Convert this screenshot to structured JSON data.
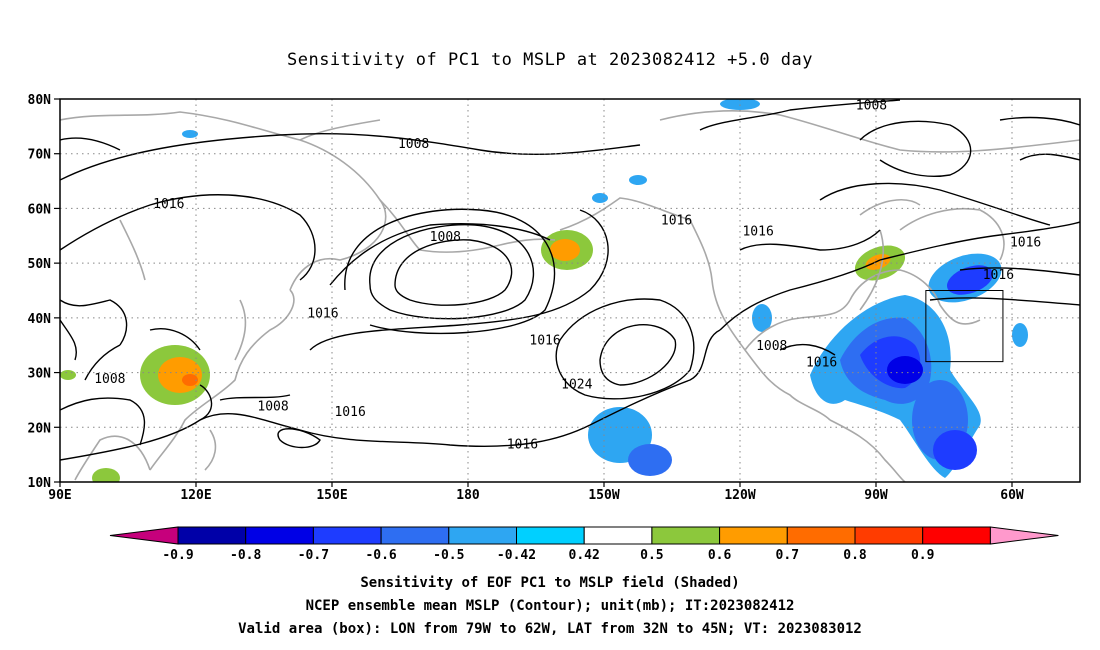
{
  "title": "Sensitivity of PC1 to MSLP at 2023082412 +5.0 day",
  "map": {
    "lat_labels": [
      "80N",
      "70N",
      "60N",
      "50N",
      "40N",
      "30N",
      "20N",
      "10N"
    ],
    "lat_values": [
      80,
      70,
      60,
      50,
      40,
      30,
      20,
      10
    ],
    "lon_labels": [
      "90E",
      "120E",
      "150E",
      "180",
      "150W",
      "120W",
      "90W",
      "60W"
    ],
    "lon_values": [
      90,
      120,
      150,
      180,
      210,
      240,
      270,
      300
    ],
    "lon_range": [
      90,
      315
    ],
    "lat_range": [
      10,
      80
    ],
    "grid": "dotted",
    "contour_labels": [
      {
        "text": "1008",
        "lon": 168,
        "lat": 72
      },
      {
        "text": "1008",
        "lon": 269,
        "lat": 79
      },
      {
        "text": "1016",
        "lon": 114,
        "lat": 61
      },
      {
        "text": "1008",
        "lon": 175,
        "lat": 55
      },
      {
        "text": "1016",
        "lon": 244,
        "lat": 56
      },
      {
        "text": "1016",
        "lon": 303,
        "lat": 54
      },
      {
        "text": "1016",
        "lon": 297,
        "lat": 48
      },
      {
        "text": "1016",
        "lon": 148,
        "lat": 41
      },
      {
        "text": "1016",
        "lon": 226,
        "lat": 58
      },
      {
        "text": "1016",
        "lon": 197,
        "lat": 36
      },
      {
        "text": "1024",
        "lon": 204,
        "lat": 28
      },
      {
        "text": "1008",
        "lon": 101,
        "lat": 29
      },
      {
        "text": "1008",
        "lon": 137,
        "lat": 24
      },
      {
        "text": "1016",
        "lon": 154,
        "lat": 23
      },
      {
        "text": "1016",
        "lon": 192,
        "lat": 17
      },
      {
        "text": "1008",
        "lon": 247,
        "lat": 35
      },
      {
        "text": "1016",
        "lon": 258,
        "lat": 32
      }
    ],
    "box": {
      "lon_min": 281,
      "lon_max": 298,
      "lat_min": 32,
      "lat_max": 45
    }
  },
  "colorbar": {
    "labels": [
      "-0.9",
      "-0.8",
      "-0.7",
      "-0.6",
      "-0.5",
      "-0.42",
      "0.42",
      "0.5",
      "0.6",
      "0.7",
      "0.8",
      "0.9"
    ],
    "colors": [
      "#c6007c",
      "#0000a8",
      "#0000e6",
      "#1e3cff",
      "#2e6ef2",
      "#2ea6f2",
      "#00d0ff",
      "#ffffff",
      "#8cc83c",
      "#ff9c00",
      "#ff6c00",
      "#ff3c00",
      "#ff0000",
      "#ff99cc"
    ]
  },
  "captions": {
    "line1": "Sensitivity of EOF PC1 to MSLP field (Shaded)",
    "line2": "NCEP ensemble mean MSLP (Contour); unit(mb); IT:2023082412",
    "line3": "Valid area (box): LON from 79W to 62W, LAT from 32N to 45N; VT: 2023083012"
  }
}
